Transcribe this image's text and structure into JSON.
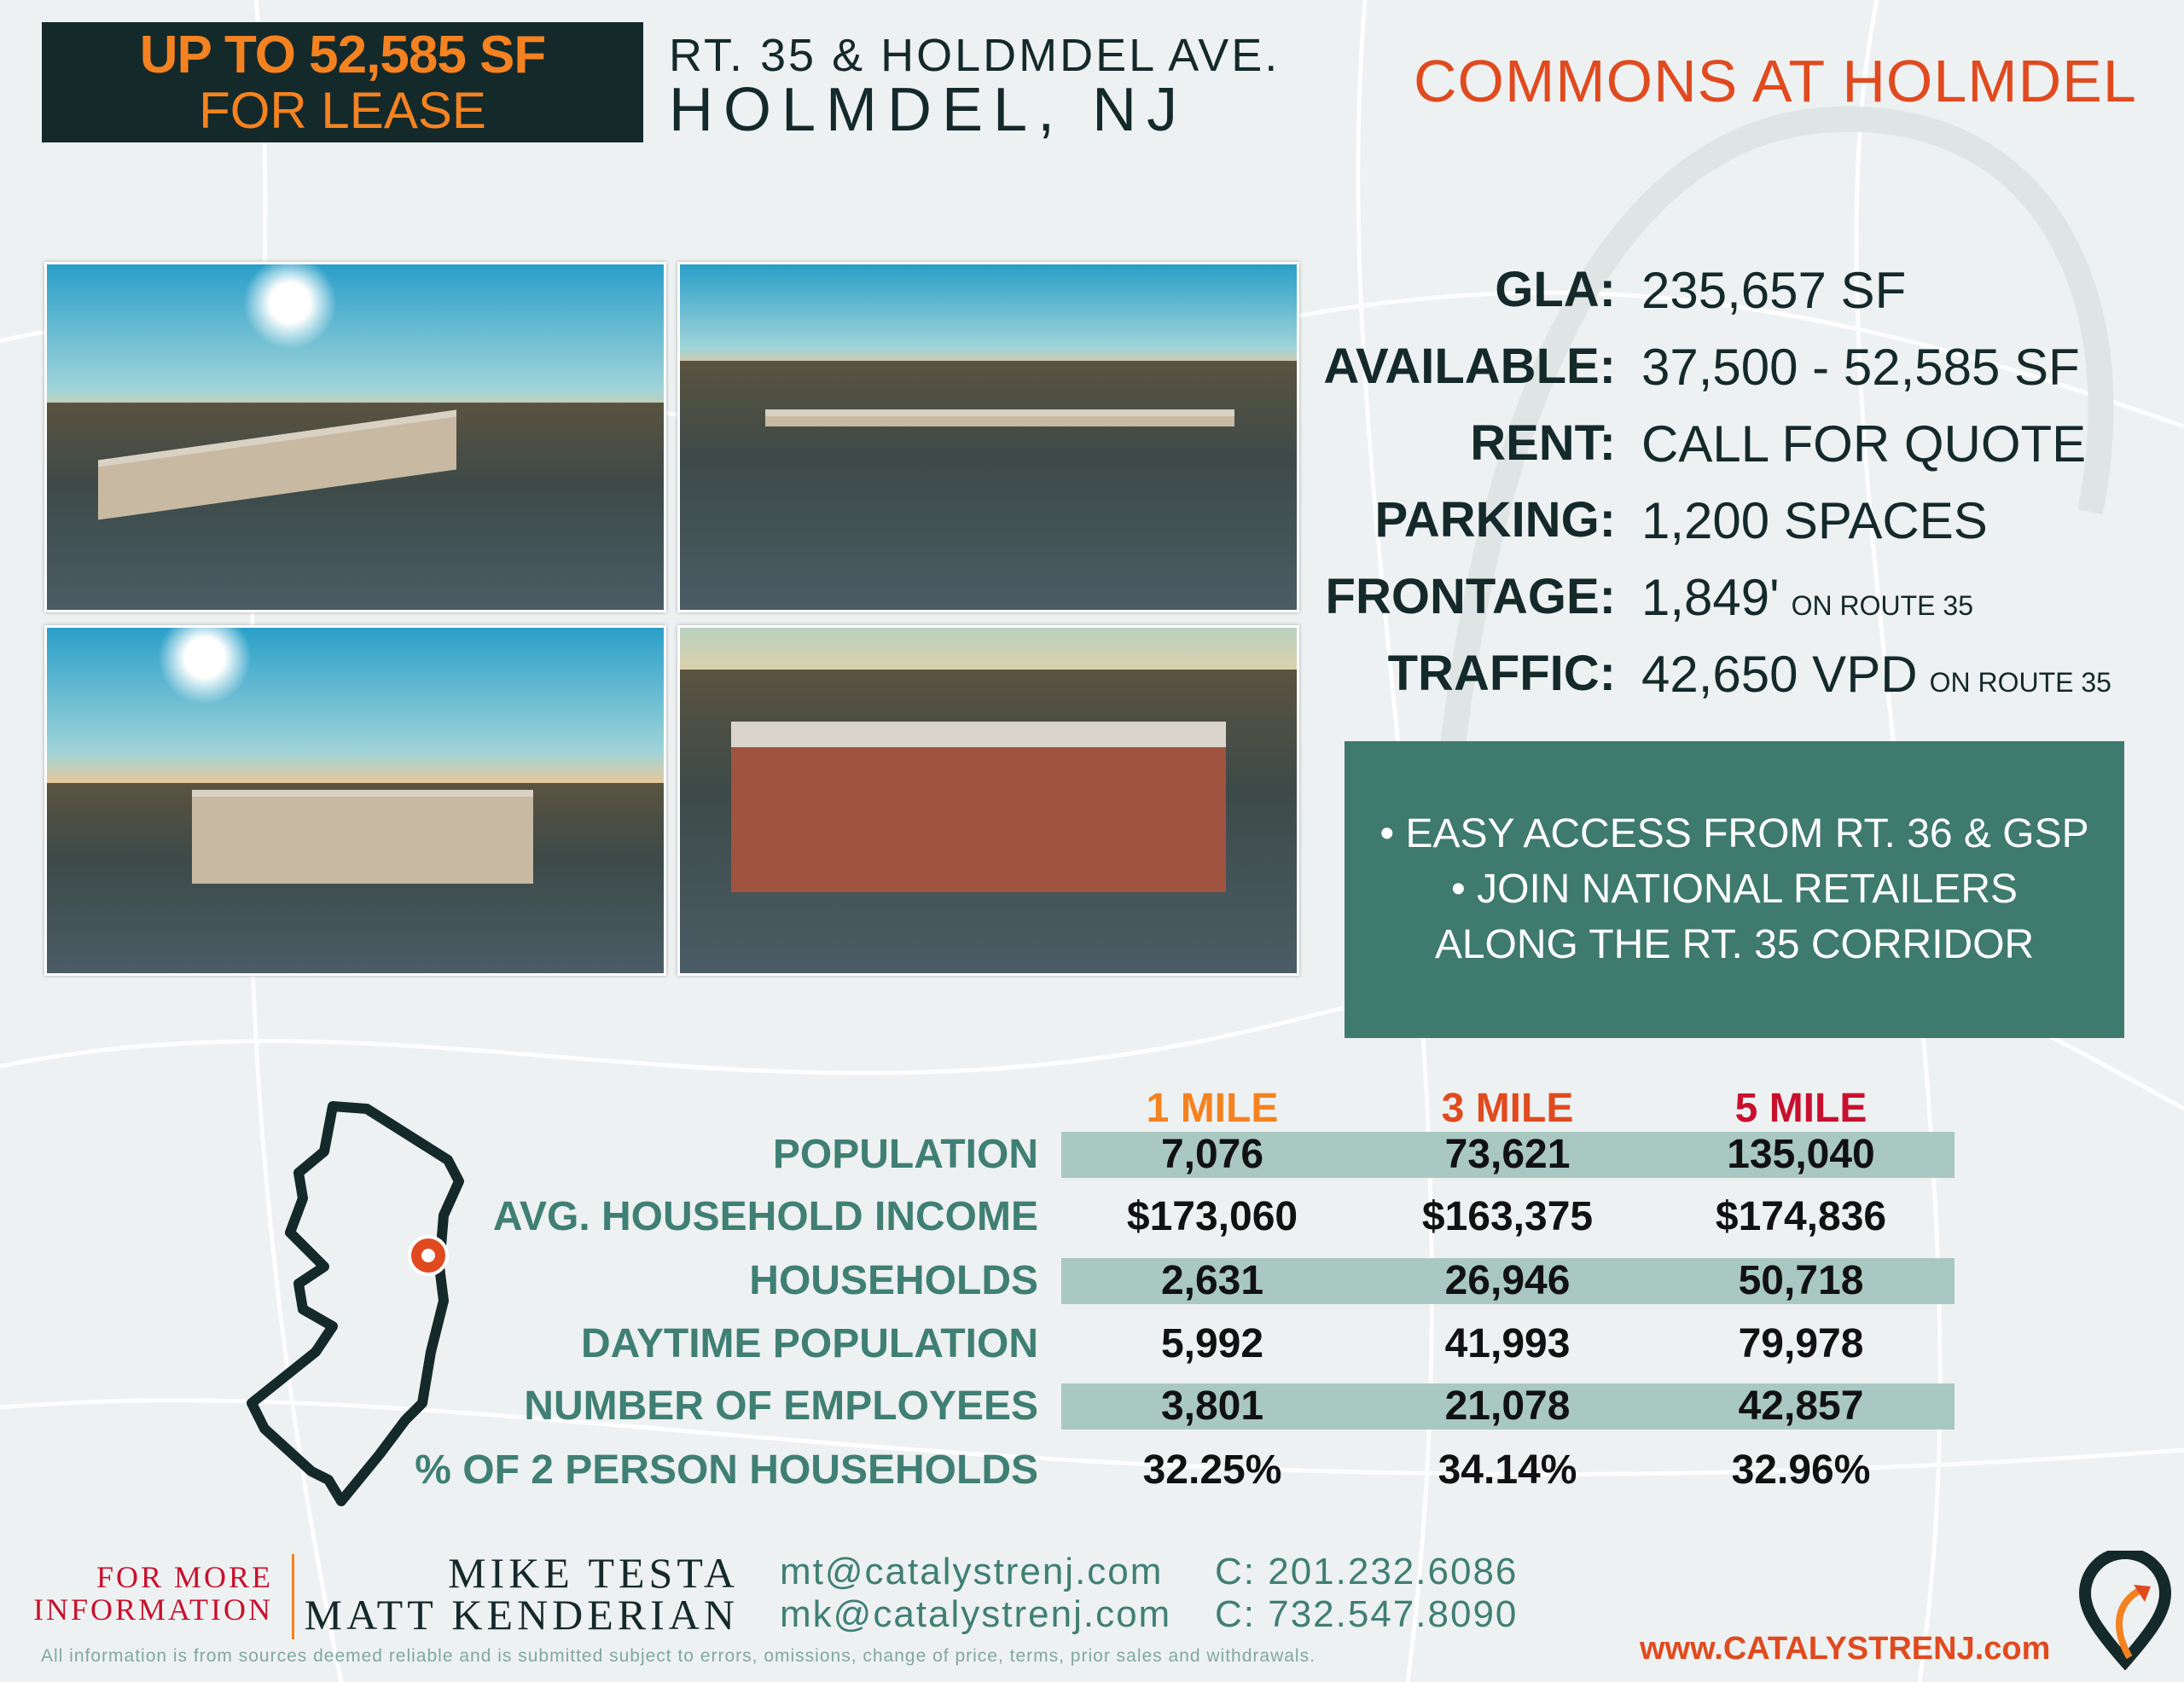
{
  "header": {
    "lease_line1": "UP TO 52,585 SF",
    "lease_line2": "FOR LEASE",
    "address_line1": "RT. 35 & HOLDMDEL AVE.",
    "address_line2": "HOLMDEL, NJ",
    "property_name": "COMMONS AT HOLMDEL"
  },
  "colors": {
    "dark": "#14292a",
    "orange": "#f58220",
    "red": "#e04a1f",
    "teal": "#3e7a6e",
    "band": "#a9c8c2"
  },
  "specs": [
    {
      "label": "GLA:",
      "value": "235,657 SF",
      "note": ""
    },
    {
      "label": "AVAILABLE:",
      "value": "37,500 - 52,585 SF",
      "note": ""
    },
    {
      "label": "RENT:",
      "value": "CALL FOR QUOTE",
      "note": ""
    },
    {
      "label": "PARKING:",
      "value": "1,200 SPACES",
      "note": ""
    },
    {
      "label": "FRONTAGE:",
      "value": "1,849'",
      "note": "ON ROUTE 35"
    },
    {
      "label": "TRAFFIC:",
      "value": "42,650 VPD",
      "note": "ON ROUTE 35"
    }
  ],
  "highlights": [
    "• EASY ACCESS FROM RT. 36 & GSP",
    "• JOIN NATIONAL RETAILERS",
    "ALONG THE RT. 35 CORRIDOR"
  ],
  "demographics": {
    "columns": [
      "1 MILE",
      "3 MILE",
      "5 MILE"
    ],
    "column_colors": [
      "#f58220",
      "#e04a1f",
      "#c8102e"
    ],
    "rows": [
      {
        "label": "POPULATION",
        "values": [
          "7,076",
          "73,621",
          "135,040"
        ]
      },
      {
        "label": "AVG. HOUSEHOLD INCOME",
        "values": [
          "$173,060",
          "$163,375",
          "$174,836"
        ]
      },
      {
        "label": "HOUSEHOLDS",
        "values": [
          "2,631",
          "26,946",
          "50,718"
        ]
      },
      {
        "label": "DAYTIME POPULATION",
        "values": [
          "5,992",
          "41,993",
          "79,978"
        ]
      },
      {
        "label": "NUMBER OF EMPLOYEES",
        "values": [
          "3,801",
          "21,078",
          "42,857"
        ]
      },
      {
        "label": "% OF 2 PERSON HOUSEHOLDS",
        "values": [
          "32.25%",
          "34.14%",
          "32.96%"
        ]
      }
    ]
  },
  "contact": {
    "heading_line1": "FOR MORE",
    "heading_line2": "INFORMATION",
    "agents": [
      {
        "name": "MIKE TESTA",
        "email": "mt@catalystrenj.com",
        "phone": "C: 201.232.6086"
      },
      {
        "name": "MATT KENDERIAN",
        "email": "mk@catalystrenj.com",
        "phone": "C: 732.547.8090"
      }
    ],
    "disclaimer": "All information is from sources deemed reliable and is submitted subject to errors, omissions, change of price, terms, prior sales and withdrawals.",
    "website": "www.CATALYSTRENJ.com"
  }
}
